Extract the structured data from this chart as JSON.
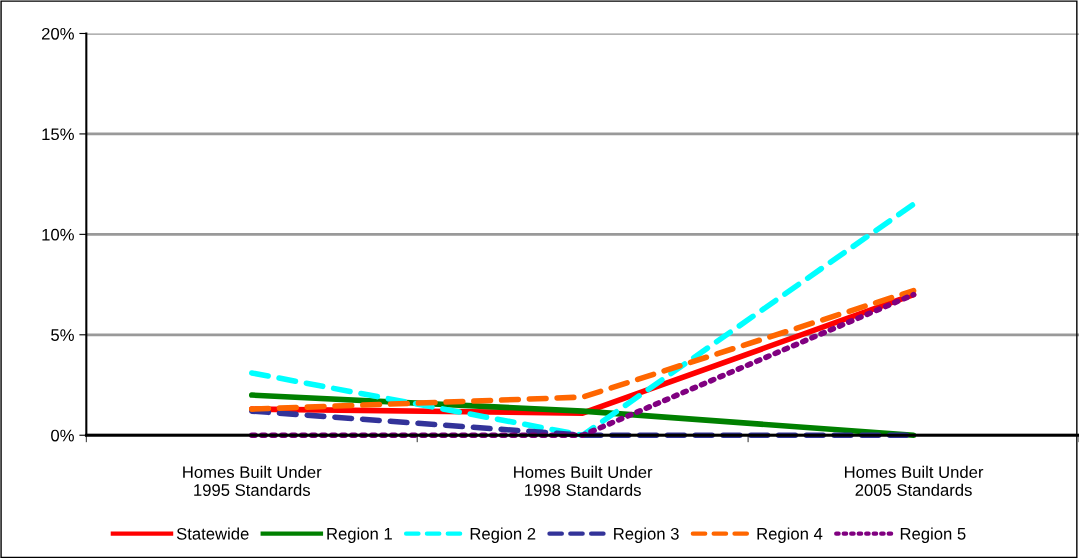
{
  "chart_data": {
    "type": "line",
    "categories": [
      "Homes Built Under\n1995 Standards",
      "Homes Built Under\n1998 Standards",
      "Homes Built Under\n2005 Standards"
    ],
    "series": [
      {
        "name": "Statewide",
        "color": "#ff0000",
        "line_style": "solid",
        "values": [
          1.3,
          1.1,
          7.0
        ]
      },
      {
        "name": "Region 1",
        "color": "#008000",
        "line_style": "solid",
        "values": [
          2.0,
          1.2,
          0
        ]
      },
      {
        "name": "Region 2",
        "color": "#00ffff",
        "line_style": "dashed",
        "values": [
          3.1,
          0,
          11.5
        ]
      },
      {
        "name": "Region 3",
        "color": "#333399",
        "line_style": "dashed",
        "values": [
          1.2,
          0,
          0
        ]
      },
      {
        "name": "Region 4",
        "color": "#ff6600",
        "line_style": "dashed",
        "values": [
          1.3,
          1.9,
          7.2
        ]
      },
      {
        "name": "Region 5",
        "color": "#800080",
        "line_style": "dotted",
        "values": [
          0,
          0,
          7.0
        ]
      }
    ],
    "ylim": [
      0,
      20
    ],
    "yticks": [
      {
        "value": 0,
        "label": "0%"
      },
      {
        "value": 5,
        "label": "5%"
      },
      {
        "value": 10,
        "label": "10%"
      },
      {
        "value": 15,
        "label": "15%"
      },
      {
        "value": 20,
        "label": "20%"
      }
    ],
    "grid": "y",
    "legend": "bottom",
    "marker": "none"
  }
}
